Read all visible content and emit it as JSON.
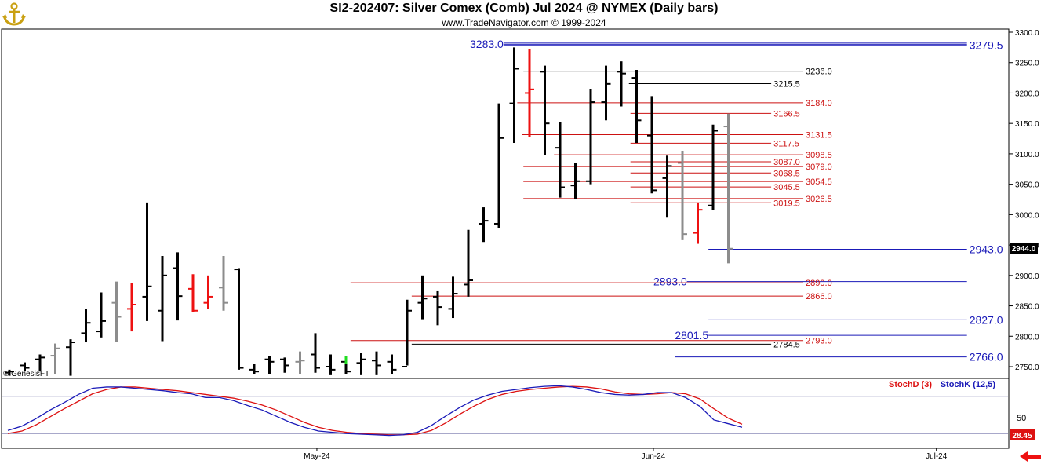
{
  "header": {
    "title": "SI2-202407:  Silver Comex (Comb) Jul 2024 @ NYMEX  (Daily bars)",
    "subtitle": "www.TradeNavigator.com © 1999-2024",
    "watermark": "© GenesisFT"
  },
  "colors": {
    "black_bar": "#000000",
    "red_bar": "#ee1111",
    "gray_bar": "#8c8c8c",
    "green_tick": "#22dd22",
    "blue_level": "#1a1ab8",
    "red_level": "#cc1111",
    "stoch_d": "#dd1111",
    "stoch_k": "#1a1ab8"
  },
  "chart_data": {
    "type": "bar",
    "subtype": "ohlc",
    "y_axis": {
      "min": 2730,
      "max": 3300,
      "ticks": [
        "3300.0",
        "3250.0",
        "3200.0",
        "3150.0",
        "3100.0",
        "3050.0",
        "3000.0",
        "2950.0",
        "2900.0",
        "2850.0",
        "2800.0",
        "2750.0"
      ],
      "last_price_badge": "2944.0"
    },
    "x_axis": {
      "labels": [
        {
          "text": "May-24",
          "bar_index": 20.1
        },
        {
          "text": "Jun-24",
          "bar_index": 42.1
        },
        {
          "text": "Jul-24",
          "bar_index": 60.6
        }
      ]
    },
    "ohlc": [
      [
        2740,
        2745,
        2735,
        2742,
        "black"
      ],
      [
        2752,
        2757,
        2742,
        2748,
        "black"
      ],
      [
        2762,
        2770,
        2742,
        2765,
        "black"
      ],
      [
        2768,
        2788,
        2738,
        2780,
        "gray"
      ],
      [
        2782,
        2795,
        2735,
        2790,
        "black"
      ],
      [
        2805,
        2845,
        2790,
        2822,
        "black"
      ],
      [
        2808,
        2872,
        2798,
        2825,
        "black"
      ],
      [
        2855,
        2890,
        2790,
        2832,
        "gray"
      ],
      [
        2845,
        2887,
        2808,
        2852,
        "red"
      ],
      [
        2865,
        3020,
        2825,
        2882,
        "black"
      ],
      [
        2842,
        2932,
        2792,
        2900,
        "black"
      ],
      [
        2912,
        2938,
        2826,
        2866,
        "black"
      ],
      [
        2878,
        2902,
        2840,
        2842,
        "red"
      ],
      [
        2855,
        2900,
        2845,
        2865,
        "red"
      ],
      [
        2880,
        2932,
        2842,
        2855,
        "gray"
      ],
      [
        2910,
        2912,
        2745,
        2748,
        "black"
      ],
      [
        2745,
        2755,
        2738,
        2742,
        "black"
      ],
      [
        2762,
        2768,
        2738,
        2758,
        "black"
      ],
      [
        2762,
        2765,
        2740,
        2752,
        "black"
      ],
      [
        2758,
        2775,
        2738,
        2760,
        "gray"
      ],
      [
        2770,
        2805,
        2740,
        2748,
        "black"
      ],
      [
        2750,
        2770,
        2736,
        2745,
        "black"
      ],
      [
        2758,
        2768,
        2738,
        2742,
        "green"
      ],
      [
        2756,
        2772,
        2736,
        2762,
        "black"
      ],
      [
        2760,
        2775,
        2736,
        2752,
        "black"
      ],
      [
        2758,
        2770,
        2738,
        2745,
        "black"
      ],
      [
        2750,
        2860,
        2752,
        2842,
        "black"
      ],
      [
        2855,
        2900,
        2828,
        2862,
        "black"
      ],
      [
        2865,
        2874,
        2818,
        2848,
        "black"
      ],
      [
        2845,
        2898,
        2830,
        2870,
        "black"
      ],
      [
        2885,
        2975,
        2865,
        2892,
        "black"
      ],
      [
        2985,
        3012,
        2955,
        2990,
        "black"
      ],
      [
        2985,
        3183,
        2978,
        3126,
        "black"
      ],
      [
        3183,
        3275,
        3118,
        3240,
        "black"
      ],
      [
        3200,
        3272,
        3128,
        3206,
        "red"
      ],
      [
        3235,
        3245,
        3098,
        3150,
        "black"
      ],
      [
        3110,
        3152,
        3028,
        3045,
        "black"
      ],
      [
        3048,
        3085,
        3025,
        3055,
        "black"
      ],
      [
        3055,
        3207,
        3050,
        3185,
        "black"
      ],
      [
        3185,
        3245,
        3155,
        3215,
        "black"
      ],
      [
        3235,
        3252,
        3178,
        3232,
        "black"
      ],
      [
        3225,
        3238,
        3118,
        3155,
        "black"
      ],
      [
        3130,
        3195,
        3035,
        3040,
        "black"
      ],
      [
        3060,
        3097,
        2995,
        3080,
        "black"
      ],
      [
        3085,
        3105,
        2958,
        2968,
        "gray"
      ],
      [
        2970,
        3020,
        2952,
        3008,
        "red"
      ],
      [
        3015,
        3148,
        3008,
        3138,
        "black"
      ],
      [
        3145,
        3166,
        2920,
        2944,
        "gray"
      ]
    ],
    "levels": [
      {
        "label": "3283.0",
        "value": 3280.5,
        "color": "blue",
        "style": "double",
        "from": 32.3,
        "to": 62.6,
        "label_side": "left"
      },
      {
        "label": "3279.5",
        "value": 3279.0,
        "color": "blue",
        "style": "single",
        "from": 32.3,
        "to": 62.6,
        "label_side": "right"
      },
      {
        "label": "3236.0",
        "value": 3236.0,
        "color": "black",
        "from": 33.6,
        "to": 51.9,
        "label_side": "right"
      },
      {
        "label": "3215.5",
        "value": 3215.5,
        "color": "black",
        "from": 40.5,
        "to": 49.8,
        "label_side": "right"
      },
      {
        "label": "3184.0",
        "value": 3184.0,
        "color": "red",
        "from": 33.2,
        "to": 51.9,
        "label_side": "right"
      },
      {
        "label": "3166.5",
        "value": 3166.5,
        "color": "red",
        "from": 40.6,
        "to": 49.8,
        "label_side": "right"
      },
      {
        "label": "3131.5",
        "value": 3131.5,
        "color": "red",
        "from": 33.5,
        "to": 51.9,
        "label_side": "right"
      },
      {
        "label": "3117.5",
        "value": 3117.5,
        "color": "red",
        "from": 40.6,
        "to": 49.8,
        "label_side": "right"
      },
      {
        "label": "3098.5",
        "value": 3098.5,
        "color": "red",
        "from": 35.6,
        "to": 51.9,
        "label_side": "right"
      },
      {
        "label": "3087.0",
        "value": 3087.0,
        "color": "red",
        "from": 40.6,
        "to": 49.8,
        "label_side": "right"
      },
      {
        "label": "3079.0",
        "value": 3079.0,
        "color": "red",
        "from": 33.6,
        "to": 51.9,
        "label_side": "right"
      },
      {
        "label": "3068.5",
        "value": 3068.5,
        "color": "red",
        "from": 40.6,
        "to": 49.8,
        "label_side": "right"
      },
      {
        "label": "3054.5",
        "value": 3054.5,
        "color": "red",
        "from": 33.6,
        "to": 51.9,
        "label_side": "right"
      },
      {
        "label": "3045.5",
        "value": 3045.5,
        "color": "red",
        "from": 40.6,
        "to": 49.8,
        "label_side": "right"
      },
      {
        "label": "3026.5",
        "value": 3026.5,
        "color": "red",
        "from": 33.6,
        "to": 51.9,
        "label_side": "right"
      },
      {
        "label": "3019.5",
        "value": 3019.5,
        "color": "red",
        "from": 40.6,
        "to": 49.8,
        "label_side": "right"
      },
      {
        "label": "2943.0",
        "value": 2943.0,
        "color": "blue",
        "from": 45.7,
        "to": 62.6,
        "label_side": "right"
      },
      {
        "label": "2893.0",
        "value": 2890.0,
        "color": "blue",
        "from": 44.3,
        "to": 62.6,
        "label_side": "left"
      },
      {
        "label": "2890.0",
        "value": 2888.0,
        "color": "red",
        "from": 22.3,
        "to": 51.9,
        "label_side": "right"
      },
      {
        "label": "2866.0",
        "value": 2866.0,
        "color": "red",
        "from": 26.3,
        "to": 51.9,
        "label_side": "right"
      },
      {
        "label": "2827.0",
        "value": 2827.0,
        "color": "blue",
        "from": 45.7,
        "to": 62.6,
        "label_side": "right"
      },
      {
        "label": "2801.5",
        "value": 2801.5,
        "color": "blue",
        "from": 45.7,
        "to": 62.6,
        "label_side": "left"
      },
      {
        "label": "2793.0",
        "value": 2793.0,
        "color": "red",
        "from": 22.3,
        "to": 51.9,
        "label_side": "right"
      },
      {
        "label": "2784.5",
        "value": 2787.0,
        "color": "black",
        "from": 26.3,
        "to": 49.8,
        "label_side": "right"
      },
      {
        "label": "2766.0",
        "value": 2766.0,
        "color": "blue",
        "from": 43.5,
        "to": 62.6,
        "label_side": "right"
      }
    ],
    "stochastic": {
      "d_label": "StochD (3)",
      "k_label": "StochK (12,5)",
      "last_value": "28.45",
      "tick_label": "50",
      "upper_line": 80,
      "lower_line": 20,
      "stoch_k": [
        25,
        32,
        44,
        58,
        70,
        83,
        93,
        95,
        95,
        93,
        91,
        89,
        86,
        84,
        78,
        78,
        73,
        65,
        58,
        48,
        38,
        30,
        24,
        22,
        20,
        19,
        18,
        17,
        18,
        22,
        33,
        48,
        62,
        74,
        82,
        88,
        91,
        94,
        96,
        97,
        95,
        91,
        86,
        83,
        82,
        83,
        86,
        86,
        78,
        64,
        42,
        36,
        30
      ],
      "stoch_d": [
        20,
        24,
        34,
        47,
        60,
        72,
        84,
        91,
        95,
        95,
        93,
        91,
        89,
        86,
        83,
        80,
        77,
        72,
        66,
        58,
        48,
        38,
        30,
        25,
        22,
        20,
        19,
        18,
        18,
        19,
        25,
        37,
        51,
        64,
        75,
        83,
        88,
        91,
        93,
        95,
        96,
        95,
        92,
        87,
        84,
        83,
        84,
        86,
        84,
        76,
        60,
        45,
        35
      ]
    }
  }
}
